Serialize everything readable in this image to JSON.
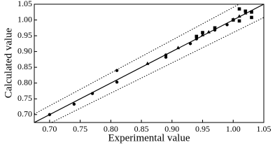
{
  "chart_data": {
    "type": "scatter",
    "x_label": "Experimental value",
    "y_label": "Calculated value",
    "xlim": [
      0.675,
      1.05
    ],
    "ylim": [
      0.675,
      1.05
    ],
    "xticks": [
      {
        "value": 0.7,
        "label": "0.70"
      },
      0.75,
      {
        "value": 0.8,
        "label": "0.80"
      },
      0.85,
      {
        "value": 0.9,
        "label": "0.90"
      },
      0.95,
      {
        "value": 1.0,
        "label": "1.00"
      },
      1.05
    ],
    "yticks": [
      {
        "value": 0.7,
        "label": "0.70"
      },
      0.75,
      {
        "value": 0.8,
        "label": "0.80"
      },
      0.85,
      {
        "value": 0.9,
        "label": "0.90"
      },
      0.95,
      {
        "value": 1.0,
        "label": "1.00"
      },
      1.05
    ],
    "reference_lines": [
      {
        "slope": 1,
        "style": "solid"
      },
      {
        "slope": 1.04,
        "style": "dotted"
      },
      {
        "slope": 0.96,
        "style": "dotted"
      }
    ],
    "series": [
      {
        "marker": "circle",
        "color": "#000000",
        "x": [
          0.7,
          0.74,
          0.77,
          0.81,
          0.81,
          0.89,
          0.89,
          0.93,
          0.94,
          0.97,
          0.99
        ],
        "values": [
          0.7,
          0.733,
          0.767,
          0.84,
          0.803,
          0.882,
          0.889,
          0.925,
          0.94,
          0.968,
          0.985
        ]
      },
      {
        "marker": "triangle",
        "color": "#000000",
        "x": [
          0.86,
          0.91,
          0.95,
          0.96,
          1.0,
          1.01,
          1.02
        ],
        "values": [
          0.862,
          0.912,
          0.953,
          0.962,
          1.002,
          1.012,
          1.022
        ]
      },
      {
        "marker": "square",
        "color": "#000000",
        "x": [
          0.94,
          0.95,
          0.97,
          1.0,
          1.01,
          1.01,
          1.02,
          1.03,
          1.03
        ],
        "values": [
          0.948,
          0.96,
          0.975,
          1.0,
          1.035,
          0.997,
          1.028,
          1.008,
          1.025
        ]
      }
    ]
  }
}
